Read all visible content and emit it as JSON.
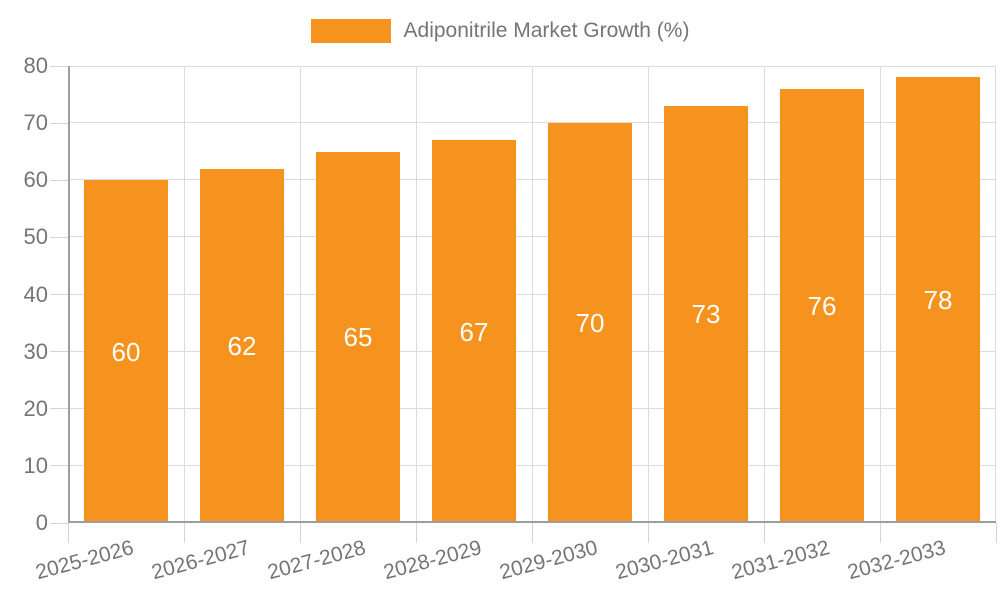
{
  "legend": {
    "label": "Adiponitrile Market Growth (%)"
  },
  "chart_data": {
    "type": "bar",
    "title": "",
    "series_name": "Adiponitrile Market Growth (%)",
    "categories": [
      "2025-2026",
      "2026-2027",
      "2027-2028",
      "2028-2029",
      "2029-2030",
      "2030-2031",
      "2031-2032",
      "2032-2033"
    ],
    "values": [
      60,
      62,
      65,
      67,
      70,
      73,
      76,
      78
    ],
    "value_labels": [
      "60",
      "62",
      "65",
      "67",
      "70",
      "73",
      "76",
      "78"
    ],
    "xlabel": "",
    "ylabel": "",
    "ylim": [
      0,
      80
    ],
    "yticks": [
      0,
      10,
      20,
      30,
      40,
      50,
      60,
      70,
      80
    ],
    "grid": true,
    "legend_position": "top-center",
    "x_label_rotation_deg": -15
  },
  "colors": {
    "bar_color": "#F6921E",
    "value_label_color": "#FFFFFF",
    "axis_label_color": "#757575",
    "legend_text_color": "#757575",
    "grid_color": "#DCDCDC",
    "axis_line_color": "#9E9E9E",
    "background": "#FFFFFF"
  }
}
